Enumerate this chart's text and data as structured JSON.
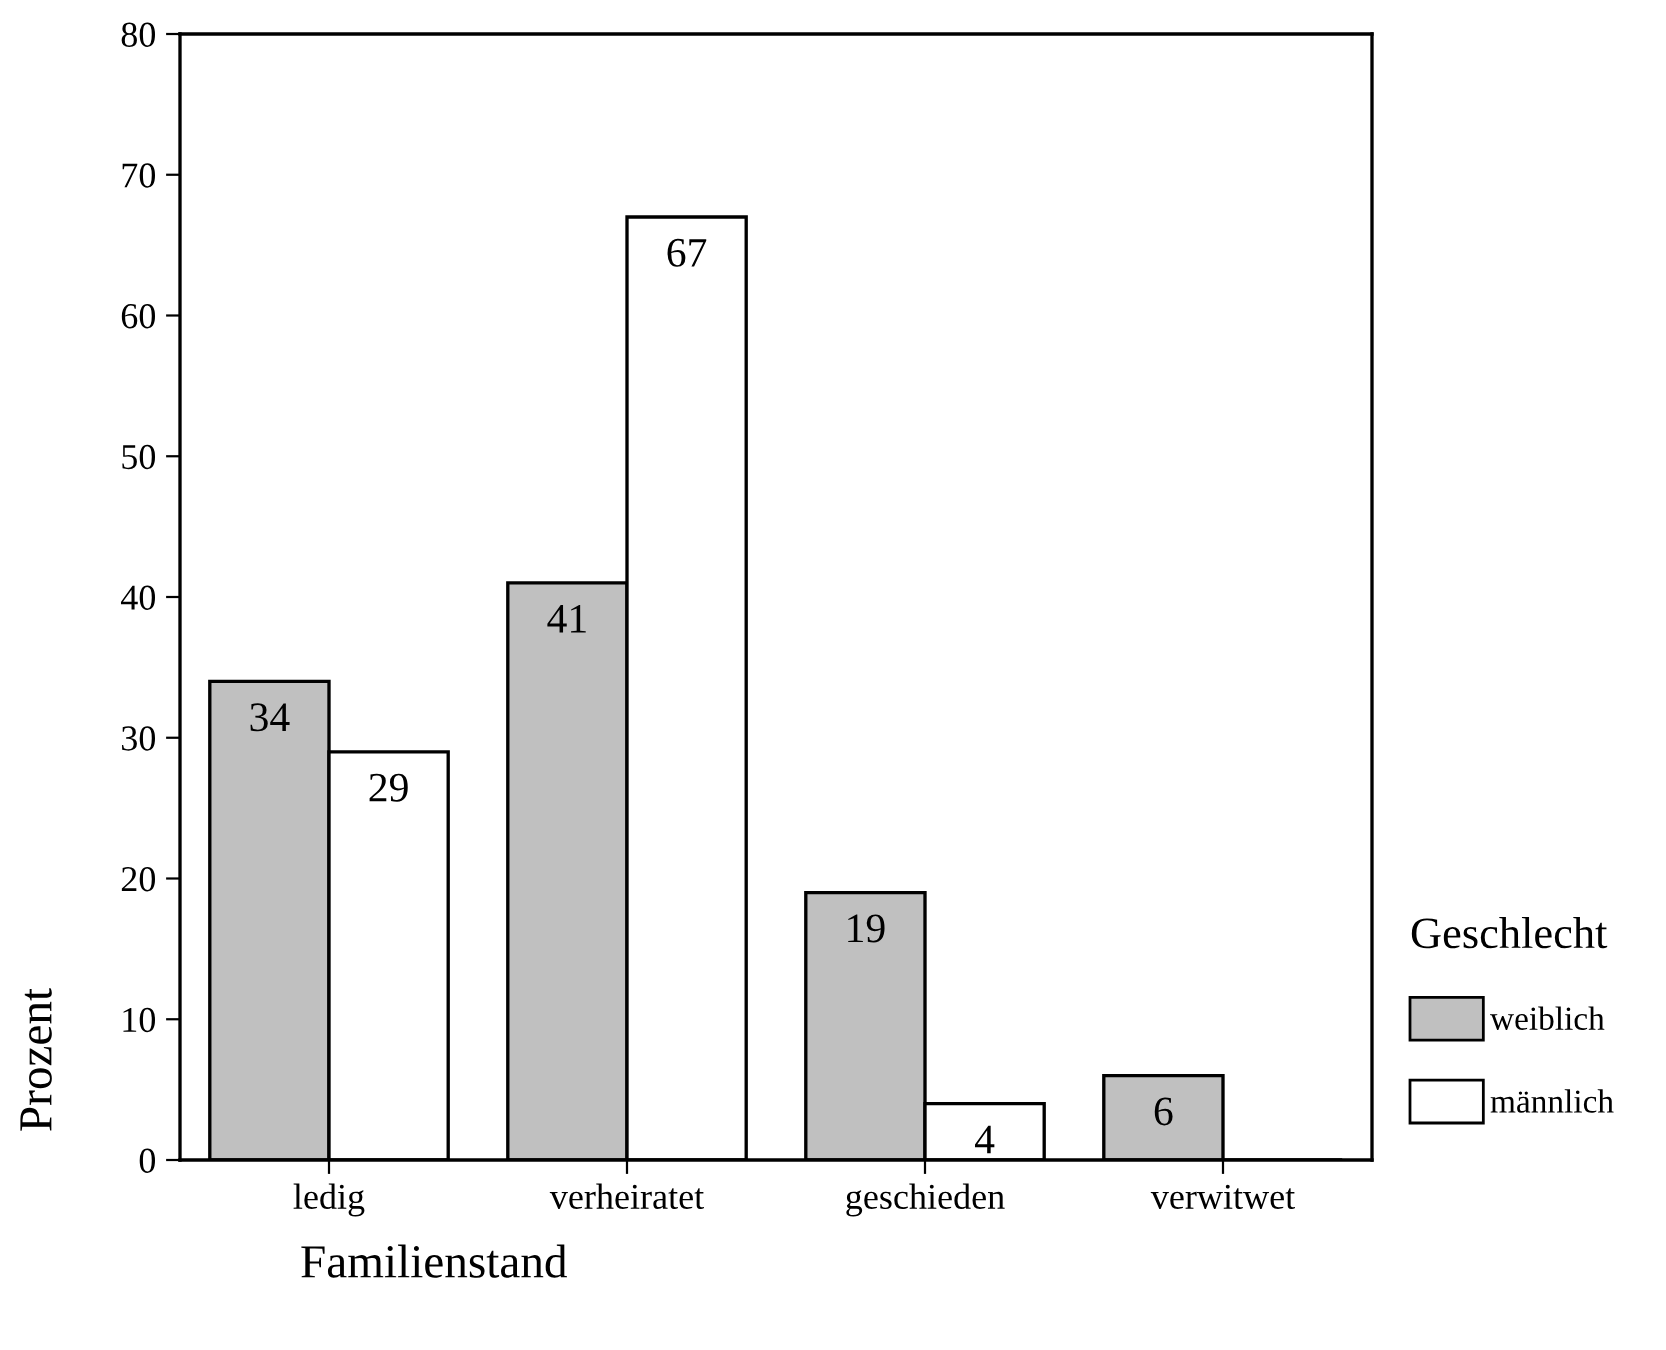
{
  "chart_data": {
    "type": "bar",
    "xlabel": "Familienstand",
    "ylabel": "Prozent",
    "legend_title": "Geschlecht",
    "categories": [
      "ledig",
      "verheiratet",
      "geschieden",
      "verwitwet"
    ],
    "series": [
      {
        "name": "weiblich",
        "color": "#c0c0c0",
        "values": [
          34,
          41,
          19,
          6
        ],
        "value_labels": [
          "34",
          "41",
          "19",
          "6"
        ]
      },
      {
        "name": "männlich",
        "color": "#ffffff",
        "values": [
          29,
          67,
          4,
          0
        ],
        "value_labels": [
          "29",
          "67",
          "4",
          null
        ]
      }
    ],
    "ylim": [
      0,
      80
    ],
    "yticks": [
      0,
      10,
      20,
      30,
      40,
      50,
      60,
      70,
      80
    ],
    "grid": false,
    "legend": "right"
  }
}
